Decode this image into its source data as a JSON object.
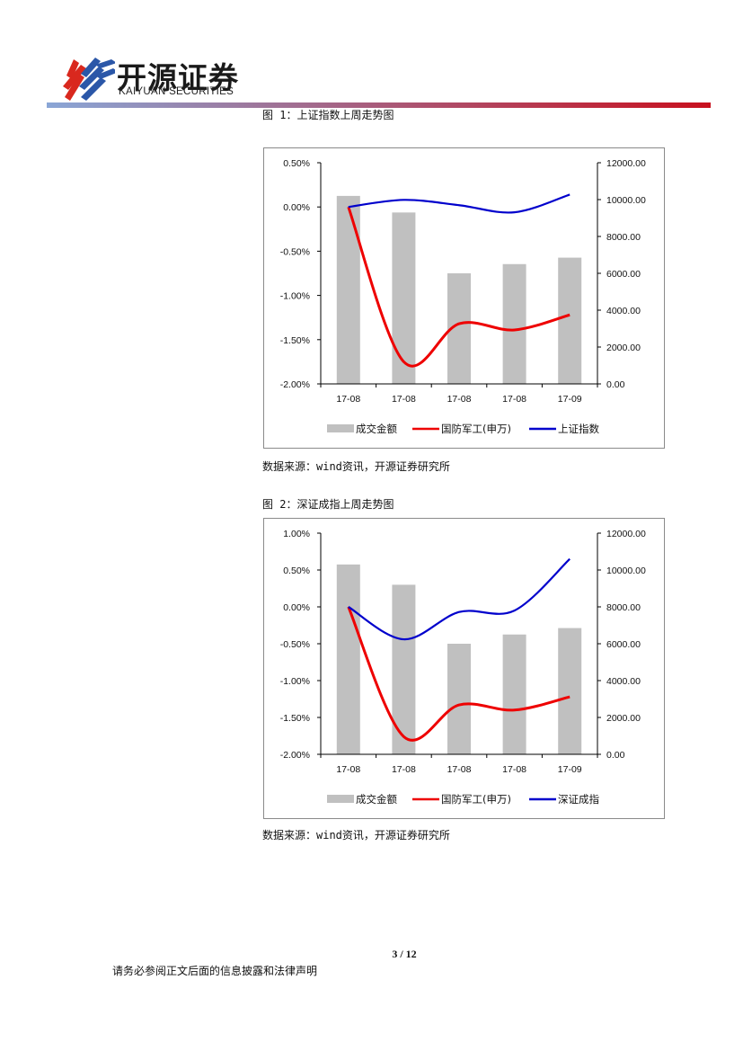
{
  "header": {
    "brand_cn": "开源证券",
    "brand_en": "KAIYUAN SECURITIES",
    "colors": {
      "rule_left": "#8aa6d6",
      "rule_right": "#c8101e",
      "logo_red": "#d9281e",
      "logo_blue": "#2b57a8"
    }
  },
  "figures": [
    {
      "title": "图 1：上证指数上周走势图",
      "source": "数据来源：wind资讯，开源证券研究所"
    },
    {
      "title": "图 2：深证成指上周走势图",
      "source": "数据来源：wind资讯，开源证券研究所"
    }
  ],
  "chart_data": [
    {
      "type": "bar",
      "categories": [
        "17-08",
        "17-08",
        "17-08",
        "17-08",
        "17-09"
      ],
      "y_left": {
        "ticks": [
          "0.50%",
          "0.00%",
          "-0.50%",
          "-1.00%",
          "-1.50%",
          "-2.00%"
        ],
        "lim": [
          -2.0,
          0.5
        ]
      },
      "y_right": {
        "ticks": [
          "12000.00",
          "10000.00",
          "8000.00",
          "6000.00",
          "4000.00",
          "2000.00",
          "0.00"
        ],
        "lim": [
          0,
          12000
        ]
      },
      "series": [
        {
          "name": "成交金额",
          "type": "bar",
          "axis": "right",
          "color": "#c0c0c0",
          "values": [
            10200,
            9300,
            6000,
            6500,
            6850
          ]
        },
        {
          "name": "国防军工(申万)",
          "type": "line",
          "axis": "left",
          "color": "#ee0000",
          "values": [
            0.0,
            -1.75,
            -1.32,
            -1.39,
            -1.22
          ]
        },
        {
          "name": "上证指数",
          "type": "line",
          "axis": "left",
          "color": "#0000cc",
          "values": [
            0.0,
            0.08,
            0.02,
            -0.06,
            0.14
          ]
        }
      ],
      "legend": "bottom"
    },
    {
      "type": "bar",
      "categories": [
        "17-08",
        "17-08",
        "17-08",
        "17-08",
        "17-09"
      ],
      "y_left": {
        "ticks": [
          "1.00%",
          "0.50%",
          "0.00%",
          "-0.50%",
          "-1.00%",
          "-1.50%",
          "-2.00%"
        ],
        "lim": [
          -2.0,
          1.0
        ]
      },
      "y_right": {
        "ticks": [
          "12000.00",
          "10000.00",
          "8000.00",
          "6000.00",
          "4000.00",
          "2000.00",
          "0.00"
        ],
        "lim": [
          0,
          12000
        ]
      },
      "series": [
        {
          "name": "成交金额",
          "type": "bar",
          "axis": "right",
          "color": "#c0c0c0",
          "values": [
            10300,
            9200,
            6000,
            6500,
            6850
          ]
        },
        {
          "name": "国防军工(申万)",
          "type": "line",
          "axis": "left",
          "color": "#ee0000",
          "values": [
            0.0,
            -1.76,
            -1.33,
            -1.4,
            -1.22
          ]
        },
        {
          "name": "深证成指",
          "type": "line",
          "axis": "left",
          "color": "#0000cc",
          "values": [
            0.0,
            -0.44,
            -0.07,
            -0.05,
            0.65
          ]
        }
      ],
      "legend": "bottom"
    }
  ],
  "footer": {
    "page": "3 / 12",
    "disclaimer": "请务必参阅正文后面的信息披露和法律声明"
  }
}
